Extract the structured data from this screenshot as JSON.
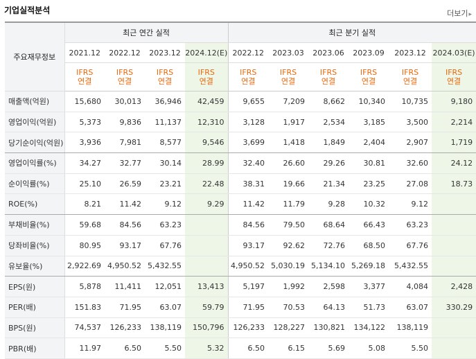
{
  "header": {
    "title": "기업실적분석",
    "more_label": "더보기"
  },
  "table": {
    "row_header_label": "주요재무정보",
    "annual_label": "최근 연간 실적",
    "quarter_label": "최근 분기 실적",
    "columns": [
      "2021.12",
      "2022.12",
      "2023.12",
      "2024.12(E)",
      "2022.12",
      "2023.03",
      "2023.06",
      "2023.09",
      "2023.12",
      "2024.03(E)"
    ],
    "basis_top": "IFRS",
    "basis_bottom": "연결",
    "rows": [
      {
        "label": "매출액(억원)",
        "values": [
          "15,680",
          "30,013",
          "36,946",
          "42,459",
          "9,655",
          "7,209",
          "8,662",
          "10,340",
          "10,735",
          "9,180"
        ]
      },
      {
        "label": "영업이익(억원)",
        "values": [
          "5,373",
          "9,836",
          "11,137",
          "12,310",
          "3,128",
          "1,917",
          "2,534",
          "3,185",
          "3,500",
          "2,214"
        ]
      },
      {
        "label": "당기순이익(억원)",
        "values": [
          "3,936",
          "7,981",
          "8,577",
          "9,546",
          "3,699",
          "1,418",
          "1,849",
          "2,404",
          "2,907",
          "1,719"
        ]
      },
      {
        "label": "영업이익률(%)",
        "values": [
          "34.27",
          "32.77",
          "30.14",
          "28.99",
          "32.40",
          "26.60",
          "29.26",
          "30.81",
          "32.60",
          "24.12"
        ]
      },
      {
        "label": "순이익률(%)",
        "values": [
          "25.10",
          "26.59",
          "23.21",
          "22.48",
          "38.31",
          "19.66",
          "21.34",
          "23.25",
          "27.08",
          "18.73"
        ]
      },
      {
        "label": "ROE(%)",
        "values": [
          "8.21",
          "11.42",
          "9.12",
          "9.29",
          "11.42",
          "11.79",
          "9.28",
          "10.32",
          "9.12",
          ""
        ]
      },
      {
        "label": "부채비율(%)",
        "values": [
          "59.68",
          "84.56",
          "63.23",
          "",
          "84.56",
          "79.50",
          "68.64",
          "66.43",
          "63.23",
          ""
        ]
      },
      {
        "label": "당좌비율(%)",
        "values": [
          "80.95",
          "93.17",
          "67.76",
          "",
          "93.17",
          "92.62",
          "72.76",
          "68.50",
          "67.76",
          ""
        ]
      },
      {
        "label": "유보율(%)",
        "values": [
          "2,922.69",
          "4,950.52",
          "5,432.55",
          "",
          "4,950.52",
          "5,030.19",
          "5,134.10",
          "5,269.18",
          "5,432.55",
          ""
        ]
      },
      {
        "label": "EPS(원)",
        "values": [
          "5,878",
          "11,411",
          "12,051",
          "13,413",
          "5,197",
          "1,992",
          "2,598",
          "3,377",
          "4,084",
          "2,428"
        ]
      },
      {
        "label": "PER(배)",
        "values": [
          "151.83",
          "71.95",
          "63.07",
          "59.79",
          "71.95",
          "70.53",
          "64.13",
          "51.73",
          "63.07",
          "330.29"
        ]
      },
      {
        "label": "BPS(원)",
        "values": [
          "74,537",
          "126,233",
          "138,119",
          "150,796",
          "126,233",
          "128,227",
          "130,821",
          "134,122",
          "138,119",
          ""
        ]
      },
      {
        "label": "PBR(배)",
        "values": [
          "11.97",
          "6.50",
          "5.50",
          "5.32",
          "6.50",
          "6.15",
          "5.69",
          "5.08",
          "5.50",
          ""
        ]
      }
    ]
  }
}
